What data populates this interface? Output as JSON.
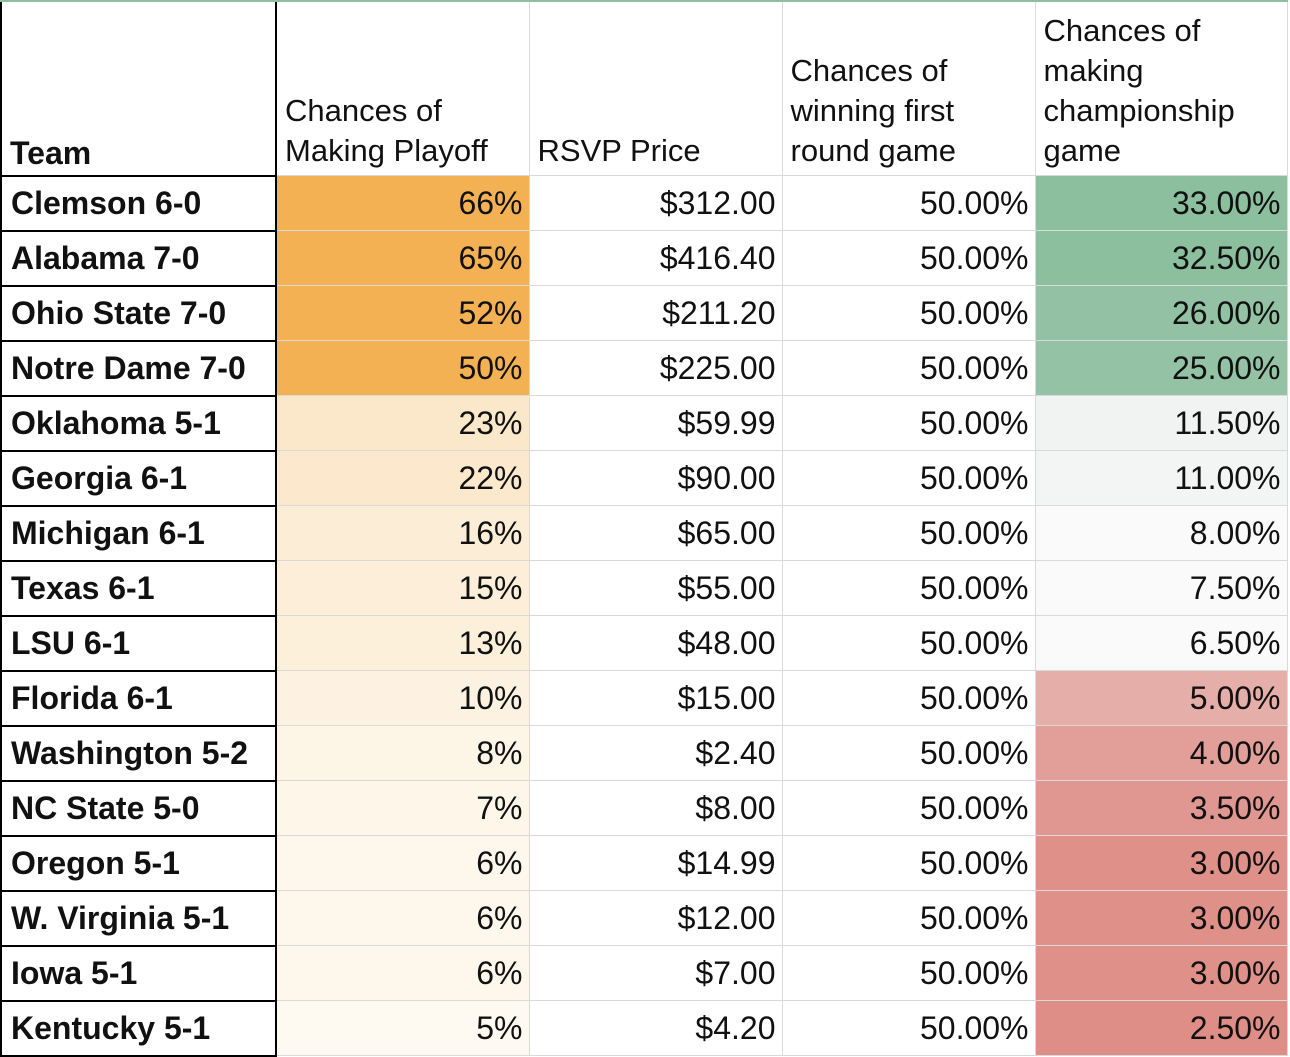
{
  "headers": {
    "team": "Team",
    "playoff": "Chances of Making Playoff",
    "rsvp": "RSVP Price",
    "first_round": "Chances of winning first round game",
    "championship": "Chances of making championship game"
  },
  "rows": [
    {
      "team": "Clemson 6-0",
      "playoff": "66%",
      "rsvp": "$312.00",
      "first_round": "50.00%",
      "championship": "33.00%"
    },
    {
      "team": "Alabama 7-0",
      "playoff": "65%",
      "rsvp": "$416.40",
      "first_round": "50.00%",
      "championship": "32.50%"
    },
    {
      "team": "Ohio State 7-0",
      "playoff": "52%",
      "rsvp": "$211.20",
      "first_round": "50.00%",
      "championship": "26.00%"
    },
    {
      "team": "Notre Dame 7-0",
      "playoff": "50%",
      "rsvp": "$225.00",
      "first_round": "50.00%",
      "championship": "25.00%"
    },
    {
      "team": "Oklahoma 5-1",
      "playoff": "23%",
      "rsvp": "$59.99",
      "first_round": "50.00%",
      "championship": "11.50%"
    },
    {
      "team": "Georgia 6-1",
      "playoff": "22%",
      "rsvp": "$90.00",
      "first_round": "50.00%",
      "championship": "11.00%"
    },
    {
      "team": "Michigan 6-1",
      "playoff": "16%",
      "rsvp": "$65.00",
      "first_round": "50.00%",
      "championship": "8.00%"
    },
    {
      "team": "Texas 6-1",
      "playoff": "15%",
      "rsvp": "$55.00",
      "first_round": "50.00%",
      "championship": "7.50%"
    },
    {
      "team": "LSU 6-1",
      "playoff": "13%",
      "rsvp": "$48.00",
      "first_round": "50.00%",
      "championship": "6.50%"
    },
    {
      "team": "Florida 6-1",
      "playoff": "10%",
      "rsvp": "$15.00",
      "first_round": "50.00%",
      "championship": "5.00%"
    },
    {
      "team": "Washington 5-2",
      "playoff": "8%",
      "rsvp": "$2.40",
      "first_round": "50.00%",
      "championship": "4.00%"
    },
    {
      "team": "NC State 5-0",
      "playoff": "7%",
      "rsvp": "$8.00",
      "first_round": "50.00%",
      "championship": "3.50%"
    },
    {
      "team": "Oregon 5-1",
      "playoff": "6%",
      "rsvp": "$14.99",
      "first_round": "50.00%",
      "championship": "3.00%"
    },
    {
      "team": "W. Virginia 5-1",
      "playoff": "6%",
      "rsvp": "$12.00",
      "first_round": "50.00%",
      "championship": "3.00%"
    },
    {
      "team": "Iowa 5-1",
      "playoff": "6%",
      "rsvp": "$7.00",
      "first_round": "50.00%",
      "championship": "3.00%"
    },
    {
      "team": "Kentucky 5-1",
      "playoff": "5%",
      "rsvp": "$4.20",
      "first_round": "50.00%",
      "championship": "2.50%"
    }
  ],
  "colors": {
    "playoff_high": "#f4b153",
    "playoff_low": "#fefbf4",
    "champ_high": "#8bbf9e",
    "champ_mid": "#f7f7f7",
    "champ_low": "#de8e87",
    "header_rule": "#8fbf9f",
    "grid": "#d9d9d9"
  }
}
